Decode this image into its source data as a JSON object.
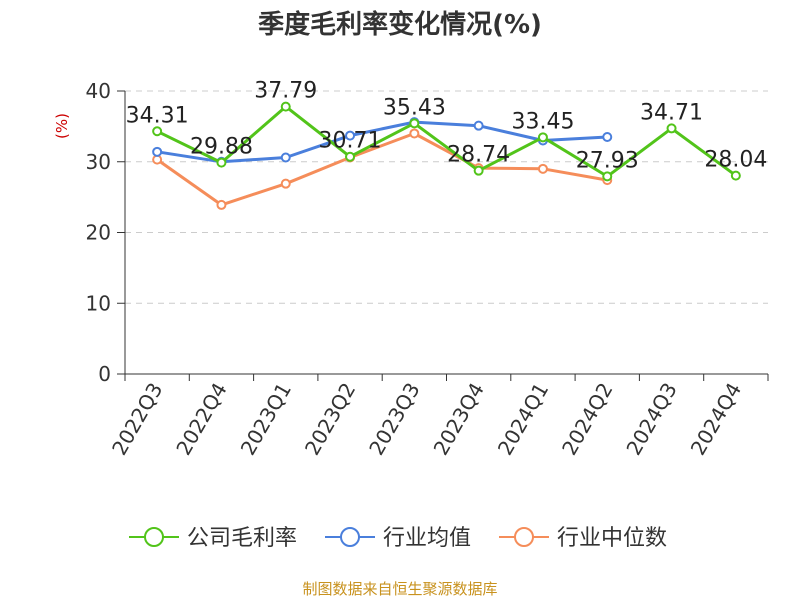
{
  "chart_data": {
    "type": "line",
    "title": "季度毛利率变化情况(%)",
    "ylabel": "(%)",
    "xlabel": "",
    "categories": [
      "2022Q3",
      "2022Q4",
      "2023Q1",
      "2023Q2",
      "2023Q3",
      "2023Q4",
      "2024Q1",
      "2024Q2",
      "2024Q3",
      "2024Q4"
    ],
    "ylim": [
      0,
      40
    ],
    "yticks": [
      0,
      10,
      20,
      30,
      40
    ],
    "grid": "horizontal-dashed",
    "legend_position": "bottom",
    "series": [
      {
        "name": "公司毛利率",
        "color": "#52c41a",
        "values": [
          34.31,
          29.88,
          37.79,
          30.71,
          35.43,
          28.74,
          33.45,
          27.93,
          34.71,
          28.04
        ],
        "labels": [
          "34.31",
          "29.88",
          "37.79",
          "30.71",
          "35.43",
          "28.74",
          "33.45",
          "27.93",
          "34.71",
          "28.04"
        ]
      },
      {
        "name": "行业均值",
        "color": "#4a7fdc",
        "values": [
          31.4,
          30.0,
          30.6,
          33.7,
          35.6,
          35.1,
          33.0,
          33.5,
          null,
          null
        ]
      },
      {
        "name": "行业中位数",
        "color": "#f58d5a",
        "values": [
          30.3,
          23.9,
          26.9,
          30.6,
          34.0,
          29.1,
          29.0,
          27.4,
          null,
          null
        ]
      }
    ]
  },
  "source_text": "制图数据来自恒生聚源数据库",
  "colors": {
    "title": "#333333",
    "unit_label": "#cc0000",
    "source": "#c8921e",
    "axis": "#333333",
    "grid": "#cccccc"
  }
}
